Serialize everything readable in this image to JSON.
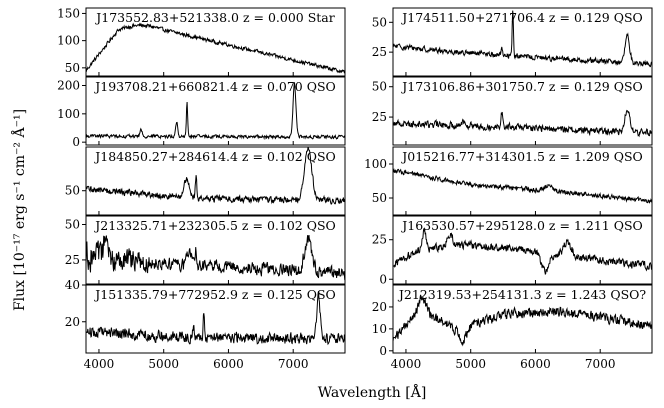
{
  "figure": {
    "xlabel": "Wavelength [Å]",
    "ylabel": "Flux [10⁻¹⁷ erg s⁻¹ cm⁻² Å⁻¹]"
  },
  "chart_data": {
    "type": "line",
    "x_axis": {
      "range": [
        3800,
        7800
      ],
      "ticks": [
        4000,
        5000,
        6000,
        7000
      ],
      "label": "Wavelength [Å]"
    },
    "y_axis_label": "Flux [10⁻¹⁷ erg s⁻¹ cm⁻² Å⁻¹]",
    "panels": [
      {
        "id": "J173552.83+521338.0",
        "title": "J173552.83+521338.0 z = 0.000 Star",
        "object": "J173552.83+521338.0",
        "z": "0.000",
        "class": "Star",
        "ylim": [
          35,
          160
        ],
        "yticks": [
          50,
          100,
          150
        ],
        "continuum": "star",
        "noise": 3,
        "features": []
      },
      {
        "id": "J174511.50+271706.4",
        "title": "J174511.50+271706.4 z = 0.129 QSO",
        "object": "J174511.50+271706.4",
        "z": "0.129",
        "class": "QSO",
        "ylim": [
          5,
          62
        ],
        "yticks": [
          25,
          50
        ],
        "continuum": [
          [
            3800,
            30
          ],
          [
            5000,
            24
          ],
          [
            6500,
            19
          ],
          [
            7800,
            15
          ]
        ],
        "noise": 2,
        "features": [
          {
            "w": 5650,
            "h": 38,
            "s": 10
          },
          {
            "w": 5480,
            "h": 8,
            "s": 10
          },
          {
            "w": 7420,
            "h": 22,
            "s": 35
          }
        ]
      },
      {
        "id": "J193708.21+660821.4",
        "title": "J193708.21+660821.4 z = 0.070 QSO",
        "object": "J193708.21+660821.4",
        "z": "0.070",
        "class": "QSO",
        "ylim": [
          -10,
          230
        ],
        "yticks": [
          0,
          100,
          200
        ],
        "continuum": [
          [
            3800,
            22
          ],
          [
            5500,
            20
          ],
          [
            7800,
            18
          ]
        ],
        "noise": 5,
        "features": [
          {
            "w": 4650,
            "h": 25,
            "s": 15
          },
          {
            "w": 5200,
            "h": 50,
            "s": 15
          },
          {
            "w": 5360,
            "h": 120,
            "s": 10
          },
          {
            "w": 7020,
            "h": 190,
            "s": 22
          }
        ]
      },
      {
        "id": "J173106.86+301750.7",
        "title": "J173106.86+301750.7 z = 0.129 QSO",
        "object": "J173106.86+301750.7",
        "z": "0.129",
        "class": "QSO",
        "ylim": [
          2,
          58
        ],
        "yticks": [
          25,
          50
        ],
        "continuum": [
          [
            3800,
            20
          ],
          [
            5500,
            17
          ],
          [
            7800,
            12
          ]
        ],
        "noise": 2.5,
        "features": [
          {
            "w": 4900,
            "h": 4,
            "s": 30
          },
          {
            "w": 5480,
            "h": 12,
            "s": 15
          },
          {
            "w": 7420,
            "h": 20,
            "s": 35
          }
        ]
      },
      {
        "id": "J184850.27+284614.4",
        "title": "J184850.27+284614.4 z = 0.102 QSO",
        "object": "J184850.27+284614.4",
        "z": "0.102",
        "class": "QSO",
        "ylim": [
          25,
          95
        ],
        "yticks": [
          50
        ],
        "continuum": [
          [
            3800,
            52
          ],
          [
            5500,
            42
          ],
          [
            7800,
            40
          ]
        ],
        "noise": 3,
        "features": [
          {
            "w": 5350,
            "h": 18,
            "s": 40
          },
          {
            "w": 5500,
            "h": 22,
            "s": 12
          },
          {
            "w": 7230,
            "h": 55,
            "s": 55
          }
        ]
      },
      {
        "id": "J015216.77+314301.5",
        "title": "J015216.77+314301.5 z = 1.209 QSO",
        "object": "J015216.77+314301.5",
        "z": "1.209",
        "class": "QSO",
        "ylim": [
          25,
          125
        ],
        "yticks": [
          50,
          100
        ],
        "continuum": [
          [
            3800,
            90
          ],
          [
            5000,
            70
          ],
          [
            6500,
            58
          ],
          [
            7800,
            45
          ]
        ],
        "noise": 3,
        "features": [
          {
            "w": 6200,
            "h": 8,
            "s": 60
          }
        ]
      },
      {
        "id": "J213325.71+232305.5",
        "title": "J213325.71+232305.5 z = 0.102 QSO",
        "object": "J213325.71+232305.5",
        "z": "0.102",
        "class": "QSO",
        "ylim": [
          8,
          56
        ],
        "yticks": [
          25,
          50
        ],
        "continuum": [
          [
            3800,
            28
          ],
          [
            4500,
            24
          ],
          [
            6000,
            20
          ],
          [
            7800,
            15
          ]
        ],
        "noise": 4,
        "noiseBlueBoost": 2.2,
        "features": [
          {
            "w": 4100,
            "h": 15,
            "s": 25
          },
          {
            "w": 5400,
            "h": 8,
            "s": 40
          },
          {
            "w": 5500,
            "h": 10,
            "s": 12
          },
          {
            "w": 7230,
            "h": 22,
            "s": 55
          }
        ]
      },
      {
        "id": "J163530.57+295128.0",
        "title": "J163530.57+295128.0 z = 1.211 QSO",
        "object": "J163530.57+295128.0",
        "z": "1.211",
        "class": "QSO",
        "ylim": [
          -3,
          40
        ],
        "yticks": [
          0,
          25
        ],
        "continuum": [
          [
            3800,
            10
          ],
          [
            4200,
            18
          ],
          [
            4800,
            22
          ],
          [
            6000,
            18
          ],
          [
            7000,
            12
          ],
          [
            7800,
            8
          ]
        ],
        "noise": 2.2,
        "features": [
          {
            "w": 4280,
            "h": 12,
            "s": 30
          },
          {
            "w": 4680,
            "h": 8,
            "s": 40
          },
          {
            "w": 6150,
            "h": -12,
            "s": 60
          },
          {
            "w": 6500,
            "h": 8,
            "s": 60
          }
        ]
      },
      {
        "id": "J151335.79+772952.9",
        "title": "J151335.79+772952.9 z = 0.125 QSO",
        "object": "J151335.79+772952.9",
        "z": "0.125",
        "class": "QSO",
        "ylim": [
          3,
          40
        ],
        "yticks": [
          20,
          40
        ],
        "continuum": [
          [
            3800,
            15
          ],
          [
            5000,
            12
          ],
          [
            6500,
            11
          ],
          [
            7800,
            11
          ]
        ],
        "noise": 2.6,
        "features": [
          {
            "w": 5460,
            "h": 6,
            "s": 15
          },
          {
            "w": 5620,
            "h": 14,
            "s": 10
          },
          {
            "w": 7390,
            "h": 24,
            "s": 25
          }
        ]
      },
      {
        "id": "J212319.53+254131.3",
        "title": "J212319.53+254131.3 z = 1.243 QSO?",
        "object": "J212319.53+254131.3",
        "z": "1.243",
        "class": "QSO?",
        "ylim": [
          -1,
          30
        ],
        "yticks": [
          0,
          10,
          20
        ],
        "continuum": [
          [
            3800,
            5
          ],
          [
            4200,
            18
          ],
          [
            4800,
            10
          ],
          [
            5600,
            17
          ],
          [
            6500,
            18
          ],
          [
            7800,
            11
          ]
        ],
        "noise": 2,
        "features": [
          {
            "w": 4250,
            "h": 6,
            "s": 60
          },
          {
            "w": 4880,
            "h": -6,
            "s": 60
          }
        ]
      }
    ]
  }
}
